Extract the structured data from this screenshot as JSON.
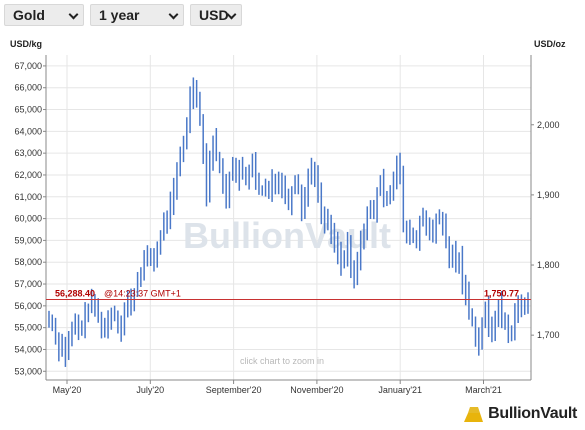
{
  "toolbar": {
    "metal": "Gold",
    "period": "1 year",
    "currency": "USD"
  },
  "chart_data": {
    "type": "ohlc",
    "left_unit": "USD/kg",
    "right_unit": "USD/oz",
    "watermark": "BullionVault",
    "zoom_hint": "click chart to zoom in",
    "left_ticks": [
      "53,000",
      "54,000",
      "55,000",
      "56,000",
      "57,000",
      "58,000",
      "59,000",
      "60,000",
      "61,000",
      "62,000",
      "63,000",
      "64,000",
      "65,000",
      "66,000",
      "67,000"
    ],
    "right_ticks": [
      "1,700",
      "1,800",
      "1,900",
      "2,000"
    ],
    "x_ticks": [
      "May'20",
      "July'20",
      "September'20",
      "November'20",
      "January'21",
      "March'21"
    ],
    "ylim_usd_per_kg": [
      52600,
      67500
    ],
    "current_price_usd_per_kg": "56,288.40",
    "current_time": "@14:23:37 GMT+1",
    "current_price_usd_per_oz": "1,750.77",
    "current_value_usd_per_kg": 56288.4,
    "colors": {
      "bars": "#4a78c8",
      "price_line": "#c83232",
      "axis": "#888888",
      "grid": "#e6e6e6"
    },
    "series_close_usd_per_kg": [
      55400,
      55100,
      54600,
      54000,
      54300,
      53700,
      54400,
      54900,
      55200,
      54800,
      55100,
      55600,
      55900,
      56200,
      55900,
      55500,
      55100,
      54800,
      55400,
      55700,
      55600,
      55300,
      54900,
      55800,
      56300,
      56000,
      56600,
      57200,
      57600,
      58100,
      58200,
      58300,
      58100,
      58600,
      59200,
      59800,
      60100,
      60700,
      61300,
      62100,
      62900,
      63500,
      64400,
      65600,
      66200,
      65400,
      64600,
      63100,
      61100,
      62700,
      63600,
      62900,
      62300,
      61600,
      61000,
      61900,
      62600,
      61800,
      62300,
      62000,
      61700,
      62200,
      62800,
      61600,
      61300,
      61200,
      61400,
      61100,
      61900,
      61600,
      61800,
      61500,
      61100,
      60700,
      61300,
      61800,
      61400,
      60300,
      61100,
      61900,
      62400,
      62000,
      61100,
      60200,
      59900,
      59800,
      59300,
      59000,
      58500,
      57900,
      58200,
      58800,
      57600,
      57300,
      58100,
      58900,
      59600,
      60200,
      60400,
      60200,
      61200,
      61700,
      60900,
      61100,
      61300,
      61900,
      62600,
      61900,
      59600,
      59200,
      59400,
      59100,
      58900,
      59800,
      60200,
      59700,
      59400,
      59100,
      59900,
      60100,
      59700,
      58800,
      58000,
      58500,
      57900,
      58200,
      57100,
      56600,
      55700,
      55300,
      54600,
      54300,
      55200,
      55900,
      55000,
      54800,
      55500,
      56100,
      55400,
      55200,
      54700,
      54900,
      55600,
      56100,
      55800,
      56200,
      56300
    ]
  },
  "logo": {
    "text": "BullionVault"
  }
}
